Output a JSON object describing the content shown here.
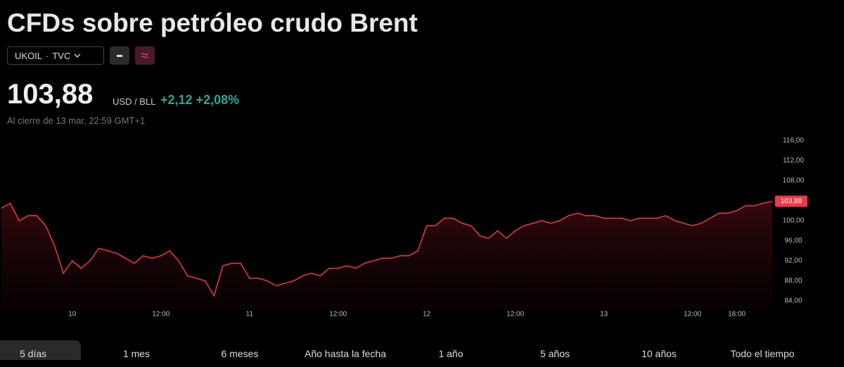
{
  "header": {
    "title": "CFDs sobre petróleo crudo Brent",
    "symbol": "UKOIL",
    "separator": "·",
    "exchange": "TVC",
    "price": "103,88",
    "currency": "USD / BLL",
    "change": "+2,12",
    "change_pct": "+2,08%",
    "timestamp": "Al cierre de 13 mar, 22:59 GMT+1"
  },
  "chart_data": {
    "type": "line",
    "color": "#f23645",
    "categories": [
      null,
      null,
      null,
      null,
      null,
      null,
      null,
      null,
      "10",
      null,
      null,
      null,
      null,
      null,
      null,
      null,
      null,
      null,
      "12:00",
      null,
      null,
      null,
      null,
      null,
      null,
      null,
      null,
      null,
      "11",
      null,
      null,
      null,
      null,
      null,
      null,
      null,
      null,
      null,
      "12:00",
      null,
      null,
      null,
      null,
      null,
      null,
      null,
      null,
      null,
      "12",
      null,
      null,
      null,
      null,
      null,
      null,
      null,
      null,
      null,
      "12:00",
      null,
      null,
      null,
      null,
      null,
      null,
      null,
      null,
      null,
      "13",
      null,
      null,
      null,
      null,
      null,
      null,
      null,
      null,
      null,
      "12:00",
      null,
      null,
      null,
      null,
      "18:00",
      null,
      null,
      null,
      null
    ],
    "values": [
      102.5,
      103.5,
      100,
      101,
      101,
      99,
      95,
      89.5,
      92,
      90.5,
      92,
      94.5,
      94,
      93.5,
      92.5,
      91.5,
      93,
      92.5,
      93,
      94,
      92,
      89,
      88.5,
      88,
      85,
      91,
      91.5,
      91.5,
      88.5,
      88.5,
      88,
      87,
      87.5,
      88,
      89,
      89.5,
      89,
      90.5,
      90.5,
      91,
      90.5,
      91.5,
      92,
      92.5,
      92.5,
      93,
      93,
      94,
      99,
      99,
      100.5,
      100.5,
      99.5,
      99,
      97,
      96.5,
      98,
      96.5,
      98,
      99,
      99.5,
      100,
      99.5,
      100,
      101,
      101.5,
      101,
      101,
      100.5,
      100.5,
      100.5,
      100,
      100.5,
      100.5,
      100.5,
      101,
      100,
      99.5,
      99,
      99.5,
      100.5,
      101.5,
      101.5,
      102,
      103,
      103,
      103.5,
      103.88
    ],
    "ylim": [
      82.3,
      118.1
    ],
    "yticks": [
      {
        "value": 84,
        "label": "84,00"
      },
      {
        "value": 88,
        "label": "88,00"
      },
      {
        "value": 92,
        "label": "92,00"
      },
      {
        "value": 96,
        "label": "96,00"
      },
      {
        "value": 100,
        "label": "100,00"
      },
      {
        "value": 104,
        "label": "104,00"
      },
      {
        "value": 108,
        "label": "108,00"
      },
      {
        "value": 112,
        "label": "112,00"
      },
      {
        "value": 116,
        "label": "116,00"
      }
    ]
  },
  "tabs": [
    "5 días",
    "1 mes",
    "6 meses",
    "Año hasta la fecha",
    "1 año",
    "5 años",
    "10 años",
    "Todo el tiempo"
  ]
}
